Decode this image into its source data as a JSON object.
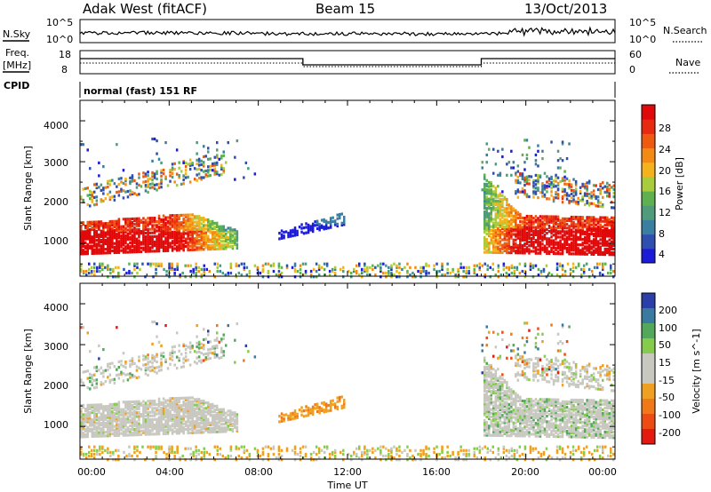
{
  "header": {
    "station": "Adak West (fitACF)",
    "beam": "Beam 15",
    "date": "13/Oct/2013"
  },
  "nsky_panel": {
    "left_label": "N.Sky",
    "right_label": "N.Search",
    "left_ticks": [
      "10^5",
      "10^0"
    ],
    "right_ticks": [
      "10^5",
      "10^0"
    ]
  },
  "freq_panel": {
    "left_label_1": "Freq.",
    "left_label_2": "[MHz]",
    "right_label": "Nave",
    "left_ticks": [
      "18",
      "8"
    ],
    "right_ticks": [
      "60",
      "0"
    ],
    "cpid_label": "CPID",
    "mode_text": "normal (fast) 151 RF"
  },
  "colors": {
    "power": [
      "#1b1bd8",
      "#2f4fb0",
      "#3a7ea0",
      "#4f9b7a",
      "#5fb04e",
      "#a8cc3c",
      "#f4b21c",
      "#f28a14",
      "#ee5a10",
      "#e82a10",
      "#e00808"
    ],
    "velocity": [
      "#2a3fa8",
      "#3a7aa0",
      "#54a85c",
      "#86cc4c",
      "#c8c8c0",
      "#c8c8c0",
      "#f0a020",
      "#f07818",
      "#ec4c14",
      "#e41a10"
    ]
  },
  "chart_data": [
    {
      "type": "heatmap",
      "title": "Power",
      "xlabel": "Time UT",
      "ylabel": "Slant Range [km]",
      "xlim": [
        "00:00",
        "24:00"
      ],
      "ylim": [
        200,
        4500
      ],
      "x_ticks": [
        "00:00",
        "04:00",
        "08:00",
        "12:00",
        "16:00",
        "20:00",
        "00:00"
      ],
      "y_ticks": [
        "1000",
        "2000",
        "3000",
        "4000"
      ],
      "colorbar_label": "Power [dB]",
      "colorbar_ticks": [
        "4",
        "8",
        "12",
        "16",
        "20",
        "24",
        "28"
      ],
      "colorbar_range": [
        0,
        30
      ]
    },
    {
      "type": "heatmap",
      "title": "Velocity",
      "xlabel": "Time UT",
      "ylabel": "Slant Range [km]",
      "xlim": [
        "00:00",
        "24:00"
      ],
      "ylim": [
        200,
        4500
      ],
      "x_ticks": [
        "00:00",
        "04:00",
        "08:00",
        "12:00",
        "16:00",
        "20:00",
        "00:00"
      ],
      "y_ticks": [
        "1000",
        "2000",
        "3000",
        "4000"
      ],
      "colorbar_label": "Velocity [m s^-1]",
      "colorbar_ticks": [
        "200",
        "100",
        "50",
        "15",
        "-15",
        "-50",
        "-100",
        "-200"
      ]
    }
  ]
}
